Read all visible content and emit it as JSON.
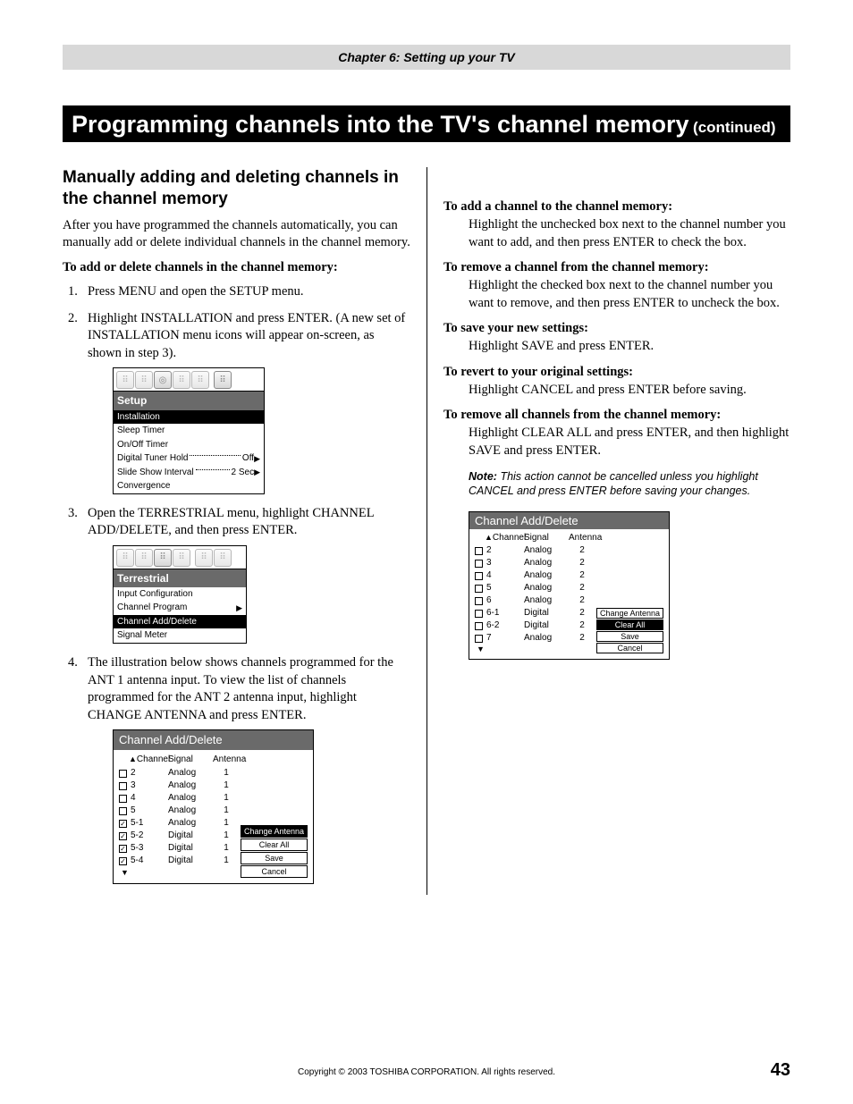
{
  "chapter": "Chapter 6: Setting up your TV",
  "title_main": "Programming channels into the TV's channel memory",
  "title_suffix": "(continued)",
  "left": {
    "section_title": "Manually adding and deleting channels in the channel memory",
    "intro": "After you have programmed the channels automatically, you can manually add or delete individual channels in the channel memory.",
    "lead": "To add or delete channels in the channel memory:",
    "steps": [
      "Press MENU and open the SETUP menu.",
      "Highlight INSTALLATION and press ENTER. (A new set of INSTALLATION menu icons will appear on-screen, as shown in step 3).",
      "Open the TERRESTRIAL menu, highlight CHANNEL ADD/DELETE, and then press ENTER.",
      "The illustration below shows channels programmed for the ANT 1 antenna input. To view the list of channels programmed for the ANT 2 antenna input, highlight CHANGE ANTENNA and press ENTER."
    ],
    "setup_menu": {
      "title": "Setup",
      "items": [
        {
          "label": "Installation",
          "selected": true
        },
        {
          "label": "Sleep Timer"
        },
        {
          "label": "On/Off Timer"
        },
        {
          "label": "Digital Tuner Hold",
          "value": "Off",
          "arrow": true,
          "dotted": true
        },
        {
          "label": "Slide Show Interval",
          "value": "2 Sec",
          "arrow": true,
          "dotted": true
        },
        {
          "label": "Convergence"
        }
      ],
      "icons": [
        "⬚",
        "⬚",
        "◎",
        "⬚",
        "⬚",
        "⬚"
      ]
    },
    "terrestrial_menu": {
      "title": "Terrestrial",
      "items": [
        {
          "label": "Input Configuration"
        },
        {
          "label": "Channel Program",
          "arrow": true
        },
        {
          "label": "Channel Add/Delete",
          "selected": true
        },
        {
          "label": "Signal Meter"
        }
      ],
      "icons": [
        "⬚",
        "⬚",
        "⬚",
        "⬚",
        "⬚",
        "⬚"
      ]
    },
    "cad1": {
      "title": "Channel Add/Delete",
      "headers": {
        "ch": "Channel",
        "sg": "Signal",
        "an": "Antenna"
      },
      "rows": [
        {
          "c": false,
          "ch": "2",
          "sg": "Analog",
          "an": "1"
        },
        {
          "c": false,
          "ch": "3",
          "sg": "Analog",
          "an": "1"
        },
        {
          "c": false,
          "ch": "4",
          "sg": "Analog",
          "an": "1"
        },
        {
          "c": false,
          "ch": "5",
          "sg": "Analog",
          "an": "1"
        },
        {
          "c": true,
          "ch": "5-1",
          "sg": "Analog",
          "an": "1"
        },
        {
          "c": true,
          "ch": "5-2",
          "sg": "Digital",
          "an": "1"
        },
        {
          "c": true,
          "ch": "5-3",
          "sg": "Digital",
          "an": "1"
        },
        {
          "c": true,
          "ch": "5-4",
          "sg": "Digital",
          "an": "1"
        }
      ],
      "buttons": [
        {
          "label": "Change Antenna",
          "sel": true
        },
        {
          "label": "Clear All"
        },
        {
          "label": "Save"
        },
        {
          "label": "Cancel"
        }
      ]
    }
  },
  "right": {
    "blocks": [
      {
        "lead": "To add a channel to the channel memory:",
        "desc": "Highlight the unchecked box next to the channel number you want to add, and then press ENTER to check the box."
      },
      {
        "lead": "To remove a channel from the channel memory:",
        "desc": "Highlight the checked box next to the channel number you want to remove, and then press ENTER to uncheck the box."
      },
      {
        "lead": "To save your new settings:",
        "desc": "Highlight SAVE and press ENTER."
      },
      {
        "lead": "To revert to your original settings:",
        "desc": "Highlight CANCEL and press ENTER before saving."
      },
      {
        "lead": "To remove all channels from the channel memory:",
        "desc": "Highlight CLEAR ALL and press ENTER, and then highlight SAVE and press ENTER."
      }
    ],
    "note_label": "Note:",
    "note_text": "This action cannot be cancelled unless you highlight CANCEL and press ENTER before saving your changes.",
    "cad2": {
      "title": "Channel Add/Delete",
      "headers": {
        "ch": "Channel",
        "sg": "Signal",
        "an": "Antenna"
      },
      "rows": [
        {
          "c": false,
          "ch": "2",
          "sg": "Analog",
          "an": "2"
        },
        {
          "c": false,
          "ch": "3",
          "sg": "Analog",
          "an": "2"
        },
        {
          "c": false,
          "ch": "4",
          "sg": "Analog",
          "an": "2"
        },
        {
          "c": false,
          "ch": "5",
          "sg": "Analog",
          "an": "2"
        },
        {
          "c": false,
          "ch": "6",
          "sg": "Analog",
          "an": "2"
        },
        {
          "c": false,
          "ch": "6-1",
          "sg": "Digital",
          "an": "2"
        },
        {
          "c": false,
          "ch": "6-2",
          "sg": "Digital",
          "an": "2"
        },
        {
          "c": false,
          "ch": "7",
          "sg": "Analog",
          "an": "2"
        }
      ],
      "buttons": [
        {
          "label": "Change Antenna"
        },
        {
          "label": "Clear All",
          "sel": true
        },
        {
          "label": "Save"
        },
        {
          "label": "Cancel"
        }
      ]
    }
  },
  "footer": {
    "copyright": "Copyright © 2003 TOSHIBA CORPORATION. All rights reserved.",
    "page": "43"
  },
  "colors": {
    "chapter_bar_bg": "#d8d8d8",
    "title_bg": "#000000",
    "title_fg": "#ffffff",
    "osd_title_bg": "#6a6a6a"
  }
}
